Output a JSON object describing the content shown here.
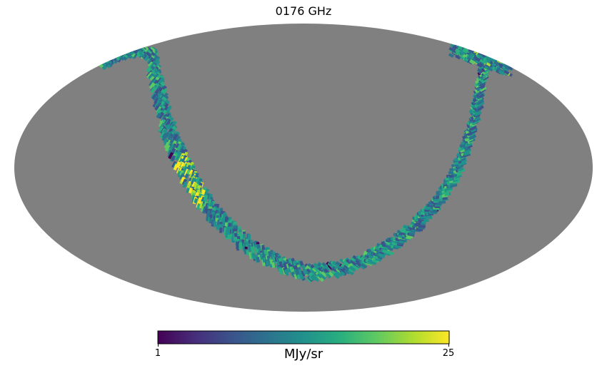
{
  "map": {
    "title": "0176 GHz",
    "projection": "mollweide",
    "background_color": "#808080",
    "colormap": "viridis",
    "colorbar": {
      "min_label": "1",
      "max_label": "25",
      "unit": "MJy/sr",
      "min": 1,
      "max": 25
    }
  }
}
